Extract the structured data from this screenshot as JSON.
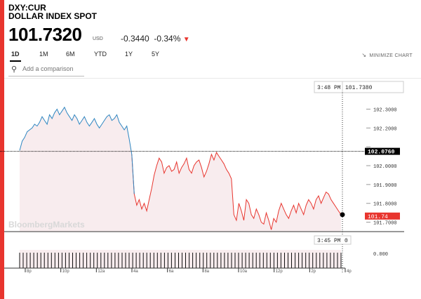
{
  "header": {
    "ticker": "DXY:CUR",
    "name": "DOLLAR INDEX SPOT",
    "price": "101.7320",
    "currency": "USD",
    "change": "-0.3440",
    "change_pct": "-0.34%",
    "change_direction_icon": "triangle-down-icon",
    "accent_color": "#e8352e"
  },
  "tabs": [
    {
      "label": "1D",
      "active": true
    },
    {
      "label": "1M",
      "active": false
    },
    {
      "label": "6M",
      "active": false
    },
    {
      "label": "YTD",
      "active": false
    },
    {
      "label": "1Y",
      "active": false
    },
    {
      "label": "5Y",
      "active": false
    }
  ],
  "minimize_label": "MINIMIZE CHART",
  "compare": {
    "placeholder": "Add a comparison",
    "icon": "search-icon"
  },
  "watermark": "BloombergMarkets",
  "chart_data": {
    "type": "line",
    "cursor": {
      "time": "3:48 PM",
      "value": "101.7380"
    },
    "volume_cursor": {
      "time": "3:45 PM",
      "value": "0"
    },
    "previous_close_label": "102.0760",
    "current_label": "101.74",
    "yticks": [
      "102.3000",
      "102.2000",
      "102.1000",
      "102.0000",
      "101.9000",
      "101.8000",
      "101.7000"
    ],
    "volume_tick": "0.000",
    "xticks": [
      "8p",
      "10p",
      "12a",
      "4a",
      "6a",
      "8a",
      "10a",
      "12p",
      "2p",
      "4p"
    ],
    "ylim": [
      101.65,
      102.38
    ],
    "previous_close": 102.076,
    "colors": {
      "above": "#2e86c1",
      "below": "#e8352e",
      "fill": "#f8ecee"
    },
    "series": [
      {
        "values": [
          102.08,
          102.13,
          102.15,
          102.18,
          102.19,
          102.2,
          102.22,
          102.21,
          102.23,
          102.26,
          102.24,
          102.22,
          102.27,
          102.25,
          102.28,
          102.3,
          102.27,
          102.29,
          102.31,
          102.28,
          102.26,
          102.24,
          102.27,
          102.25,
          102.22,
          102.24,
          102.26,
          102.23,
          102.21,
          102.23,
          102.25,
          102.22,
          102.2,
          102.22,
          102.24,
          102.26,
          102.27,
          102.24,
          102.25,
          102.27,
          102.23,
          102.21,
          102.19,
          102.21,
          102.14,
          102.06,
          101.85,
          101.79,
          101.82,
          101.77,
          101.8,
          101.76,
          101.82,
          101.88,
          101.95,
          102.0,
          102.04,
          102.02,
          101.96,
          101.99,
          102.0,
          101.97,
          101.98,
          102.02,
          101.96,
          101.99,
          102.01,
          102.04,
          101.98,
          101.96,
          102.0,
          102.02,
          102.03,
          101.99,
          101.94,
          101.97,
          102.01,
          102.06,
          102.03,
          102.07,
          102.05,
          102.03,
          102.01,
          101.98,
          101.96,
          101.93,
          101.74,
          101.71,
          101.8,
          101.76,
          101.71,
          101.82,
          101.8,
          101.74,
          101.72,
          101.77,
          101.74,
          101.7,
          101.69,
          101.75,
          101.71,
          101.66,
          101.72,
          101.7,
          101.76,
          101.8,
          101.77,
          101.74,
          101.72,
          101.76,
          101.79,
          101.75,
          101.8,
          101.77,
          101.74,
          101.79,
          101.82,
          101.8,
          101.77,
          101.82,
          101.84,
          101.8,
          101.83,
          101.86,
          101.85,
          101.82,
          101.8,
          101.78,
          101.76,
          101.74
        ]
      }
    ],
    "volume_bar_count": 92
  }
}
